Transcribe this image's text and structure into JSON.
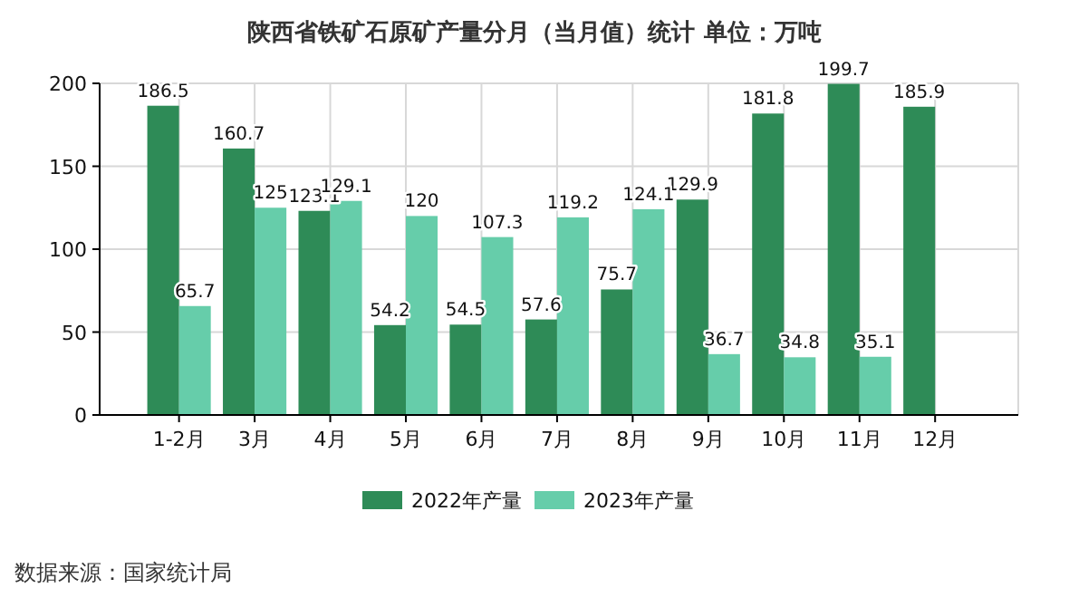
{
  "chart_data": {
    "type": "bar",
    "title": "陕西省铁矿石原矿产量分月（当月值）统计  单位：万吨",
    "categories": [
      "1-2月",
      "3月",
      "4月",
      "5月",
      "6月",
      "7月",
      "8月",
      "9月",
      "10月",
      "11月",
      "12月"
    ],
    "series": [
      {
        "name": "2022年产量",
        "color": "#2e8b57",
        "values": [
          186.5,
          160.7,
          123.1,
          54.2,
          54.5,
          57.6,
          75.7,
          129.9,
          181.8,
          199.7,
          185.9
        ]
      },
      {
        "name": "2023年产量",
        "color": "#66cdaa",
        "values": [
          65.7,
          125,
          129.1,
          120,
          107.3,
          119.2,
          124.1,
          36.7,
          34.8,
          35.1,
          null
        ]
      }
    ],
    "ylim": [
      0,
      200
    ],
    "yticks": [
      0,
      50,
      100,
      150,
      200
    ],
    "grid": true,
    "legend": "bottom",
    "data_labels": true,
    "annotations": [
      "数据来源：国家统计局"
    ]
  }
}
